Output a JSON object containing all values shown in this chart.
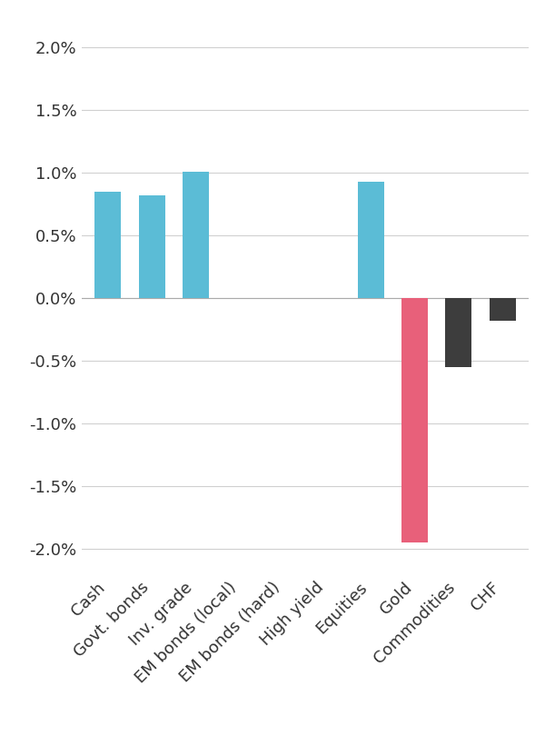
{
  "categories": [
    "Cash",
    "Govt. bonds",
    "Inv. grade",
    "EM bonds (local)",
    "EM bonds (hard)",
    "High yield",
    "Equities",
    "Gold",
    "Commodities",
    "CHF"
  ],
  "values": [
    0.0085,
    0.0082,
    0.0101,
    0.0,
    0.0,
    0.0,
    0.0093,
    -0.0195,
    -0.0055,
    -0.0018
  ],
  "colors": [
    "#5bbcd6",
    "#5bbcd6",
    "#5bbcd6",
    "#5bbcd6",
    "#5bbcd6",
    "#5bbcd6",
    "#5bbcd6",
    "#e8607a",
    "#3d3d3d",
    "#3d3d3d"
  ],
  "ylim": [
    -0.022,
    0.022
  ],
  "yticks": [
    -0.02,
    -0.015,
    -0.01,
    -0.005,
    0.0,
    0.005,
    0.01,
    0.015,
    0.02
  ],
  "ytick_labels": [
    "-2.0%",
    "-1.5%",
    "-1.0%",
    "-0.5%",
    "0.0%",
    "0.5%",
    "1.0%",
    "1.5%",
    "2.0%"
  ],
  "background_color": "#ffffff",
  "grid_color": "#d0d0d0",
  "bar_width": 0.6,
  "tick_label_fontsize": 13,
  "ytick_label_fontsize": 13
}
